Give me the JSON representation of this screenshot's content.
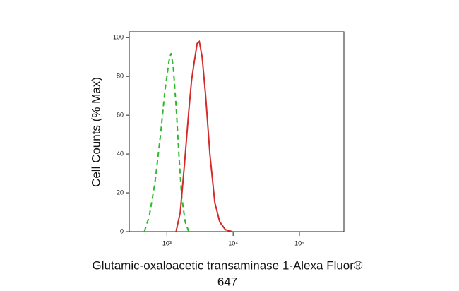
{
  "chart_data": {
    "type": "line",
    "y_label": "Cell Counts (% Max)",
    "x_label_lines": [
      "Glutamic-oxaloacetic transaminase 1-Alexa Fluor®",
      "647"
    ],
    "log_x": true,
    "xlim": [
      270,
      470000
    ],
    "ylim": [
      0,
      103
    ],
    "xticks": [
      {
        "value": 1000,
        "label": "10³"
      },
      {
        "value": 10000,
        "label": "10⁴"
      },
      {
        "value": 100000,
        "label": "10⁵"
      }
    ],
    "yticks": [
      0,
      20,
      40,
      60,
      80,
      100
    ],
    "series": [
      {
        "color": "#2db82d",
        "dash": true,
        "x": [
          457,
          542,
          659,
          802,
          929,
          1076,
          1158,
          1246,
          1375,
          1517,
          1673,
          1891,
          2138
        ],
        "values": [
          0,
          8,
          25,
          50,
          72,
          88,
          92,
          85,
          65,
          40,
          18,
          5,
          0
        ]
      },
      {
        "color": "#d42a2a",
        "dash": false,
        "x": [
          1375,
          1592,
          1845,
          2138,
          2357,
          2600,
          2866,
          3085,
          3404,
          3846,
          4457,
          5286,
          6280,
          7638,
          9752
        ],
        "values": [
          0,
          10,
          35,
          62,
          78,
          88,
          97,
          98,
          90,
          70,
          40,
          15,
          5,
          1,
          0
        ]
      }
    ]
  }
}
